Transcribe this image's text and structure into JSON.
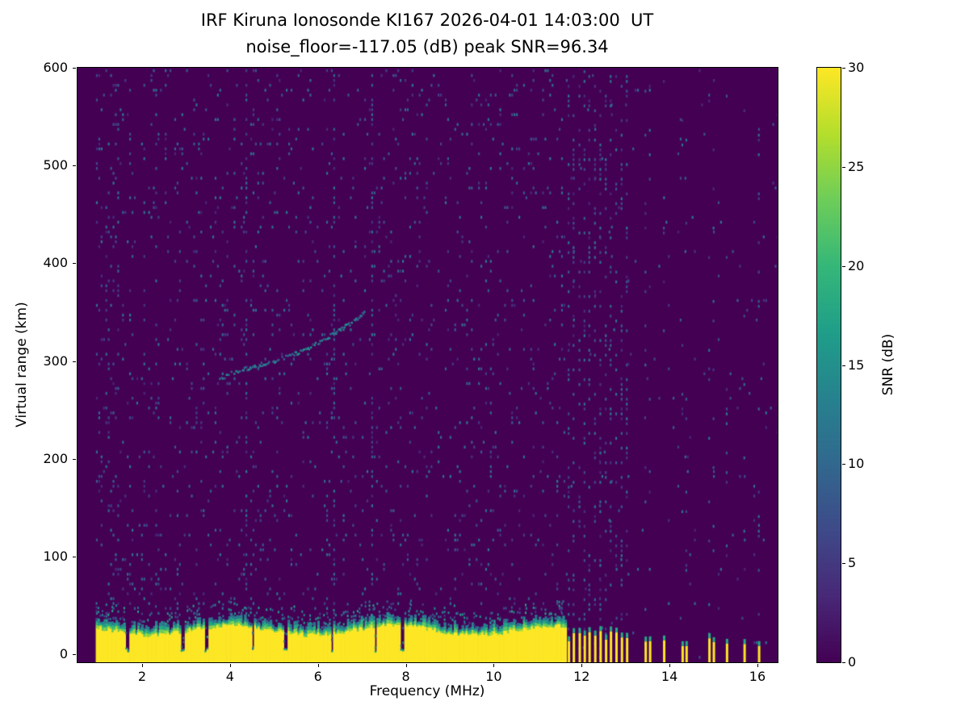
{
  "chart_data": {
    "type": "heatmap",
    "title": "IRF Kiruna Ionosonde KI167 2026-04-01 14:03:00  UT",
    "subtitle": "noise_floor=-117.05 (dB) peak SNR=96.34",
    "xlabel": "Frequency (MHz)",
    "ylabel": "Virtual range (km)",
    "colorbar_label": "SNR (dB)",
    "colormap": "viridis",
    "x_range": [
      0.53,
      16.46
    ],
    "y_range": [
      -8,
      600
    ],
    "x_ticks": [
      2,
      4,
      6,
      8,
      10,
      12,
      14,
      16
    ],
    "y_ticks": [
      0,
      100,
      200,
      300,
      400,
      500,
      600
    ],
    "colorbar_ticks": [
      0,
      5,
      10,
      15,
      20,
      25,
      30
    ],
    "colorbar_range": [
      0,
      30
    ],
    "background_snr": 0,
    "features": {
      "data_start_mhz": 0.95,
      "ground_clutter": {
        "x_start": 0.95,
        "x_end": 11.62,
        "height_km_min": 18,
        "height_km_max": 30,
        "cap_snr": 22,
        "gap_freqs_mhz": [
          1.65,
          2.9,
          3.45,
          4.5,
          5.25,
          6.3,
          7.3,
          7.9
        ]
      },
      "noisy_columns_mhz": [
        4.35,
        6.37,
        7.2
      ],
      "rfi_band": {
        "x_start": 11.7,
        "x_end": 13.1,
        "stripe_spacing_mhz": 0.12
      },
      "isolated_stripes_mhz": [
        13.45,
        13.55,
        13.87,
        14.29,
        14.38,
        14.9,
        15.0,
        15.3,
        15.7,
        16.03
      ],
      "echo_trace_points": [
        [
          3.75,
          283
        ],
        [
          4.1,
          290
        ],
        [
          4.5,
          295
        ],
        [
          5.0,
          301
        ],
        [
          5.4,
          307
        ],
        [
          5.8,
          315
        ],
        [
          6.2,
          325
        ],
        [
          6.5,
          333
        ],
        [
          6.75,
          340
        ],
        [
          6.95,
          348
        ],
        [
          7.08,
          352
        ]
      ],
      "noise_speckle": {
        "probability": 0.05,
        "snr_min": 3,
        "snr_max": 12
      }
    }
  },
  "colors": {
    "figure_background": "#ffffff",
    "cmap_min": "#440154",
    "cmap_max": "#fde725",
    "spine": "#000000"
  }
}
